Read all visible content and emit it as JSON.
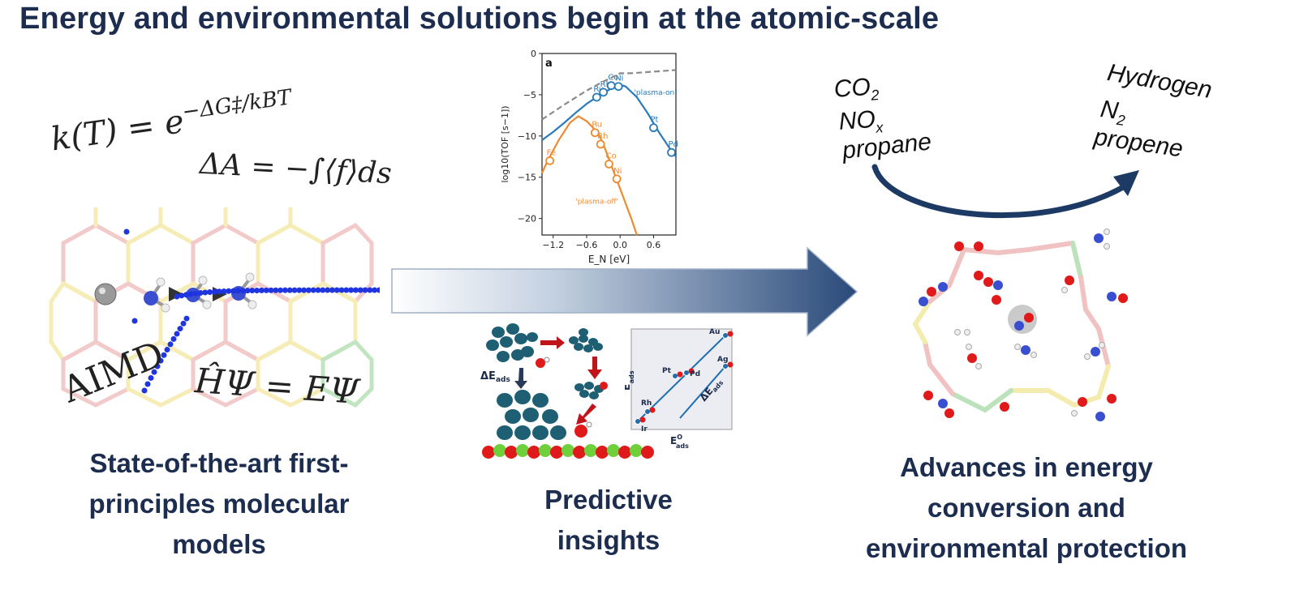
{
  "title": "Energy and environmental solutions begin at the atomic-scale",
  "left": {
    "eq_rate": "k(T) = e",
    "eq_rate_exp": "−ΔG‡/kBT",
    "eq_free": "ΔA = −∫⟨f⟩ds",
    "label_aimd": "AIMD",
    "eq_schrodinger": "ĤΨ = EΨ",
    "caption": [
      "State-of-the-art first-",
      "principles molecular",
      "models"
    ]
  },
  "middle": {
    "caption": [
      "Predictive",
      "insights"
    ],
    "delta_e_label": "ΔE",
    "delta_e_sub": "ads",
    "scaling": {
      "ylabel": "E",
      "ylabel_sup": "OH",
      "ylabel_sub": "ads",
      "xlabel": "E",
      "xlabel_sup": "O",
      "xlabel_sub": "ads",
      "delta_label": "ΔE",
      "delta_sub": "ads",
      "points": [
        "Au",
        "Ag",
        "Pt",
        "Pd",
        "Rh",
        "Ir"
      ]
    }
  },
  "right": {
    "reactants": [
      "CO2",
      "NOx",
      "propane"
    ],
    "products": [
      "Hydrogen",
      "N2",
      "propene"
    ],
    "caption": [
      "Advances in energy",
      "conversion and",
      "environmental protection"
    ]
  },
  "chart_data": {
    "type": "line",
    "panel_label": "a",
    "xlabel": "E_N [eV]",
    "ylabel": "log10(TOF [s−1])",
    "xlim": [
      -1.4,
      1.0
    ],
    "ylim": [
      -22,
      0
    ],
    "xticks": [
      -1.2,
      -0.6,
      0.0,
      0.6
    ],
    "yticks": [
      0,
      -5,
      -10,
      -15,
      -20
    ],
    "series": [
      {
        "name": "'plasma-on'",
        "color": "#2a7ab8",
        "curve": [
          [
            -1.4,
            -10.5
          ],
          [
            -1.2,
            -9.5
          ],
          [
            -1.0,
            -8.4
          ],
          [
            -0.8,
            -7.2
          ],
          [
            -0.6,
            -6.1
          ],
          [
            -0.4,
            -5.2
          ],
          [
            -0.2,
            -4.4
          ],
          [
            -0.1,
            -4.0
          ],
          [
            0.0,
            -3.8
          ],
          [
            0.1,
            -4.0
          ],
          [
            0.3,
            -5.3
          ],
          [
            0.5,
            -7.3
          ],
          [
            0.7,
            -9.6
          ],
          [
            0.9,
            -11.6
          ],
          [
            1.0,
            -12.5
          ]
        ],
        "points": [
          {
            "label": "Ru",
            "x": -0.42,
            "y": -5.3
          },
          {
            "label": "Rh",
            "x": -0.3,
            "y": -4.7
          },
          {
            "label": "Co",
            "x": -0.16,
            "y": -3.9
          },
          {
            "label": "Ni",
            "x": -0.03,
            "y": -4.0
          },
          {
            "label": "Pt",
            "x": 0.6,
            "y": -9.0
          },
          {
            "label": "Pd",
            "x": 0.92,
            "y": -12.0
          }
        ]
      },
      {
        "name": "'plasma-off'",
        "color": "#f08a2e",
        "curve": [
          [
            -1.4,
            -14.5
          ],
          [
            -1.3,
            -13.0
          ],
          [
            -1.1,
            -10.5
          ],
          [
            -0.9,
            -8.4
          ],
          [
            -0.75,
            -7.6
          ],
          [
            -0.6,
            -8.2
          ],
          [
            -0.4,
            -9.6
          ],
          [
            -0.3,
            -11.0
          ],
          [
            -0.2,
            -12.8
          ],
          [
            -0.1,
            -14.6
          ],
          [
            0.0,
            -16.4
          ],
          [
            0.1,
            -18.2
          ],
          [
            0.2,
            -20.0
          ],
          [
            0.3,
            -22.0
          ]
        ],
        "points": [
          {
            "label": "Fe",
            "x": -1.26,
            "y": -13.0
          },
          {
            "label": "Ru",
            "x": -0.45,
            "y": -9.6
          },
          {
            "label": "Rh",
            "x": -0.35,
            "y": -11.0
          },
          {
            "label": "Co",
            "x": -0.2,
            "y": -13.4
          },
          {
            "label": "Ni",
            "x": -0.06,
            "y": -15.2
          }
        ]
      },
      {
        "name": "limit",
        "dashed": true,
        "color": "#8a8a8a",
        "curve": [
          [
            -1.4,
            -8.0
          ],
          [
            -1.0,
            -6.2
          ],
          [
            -0.6,
            -4.5
          ],
          [
            -0.3,
            -3.4
          ],
          [
            0.0,
            -2.4
          ],
          [
            0.2,
            -2.4
          ],
          [
            1.0,
            -2.0
          ]
        ]
      }
    ]
  }
}
